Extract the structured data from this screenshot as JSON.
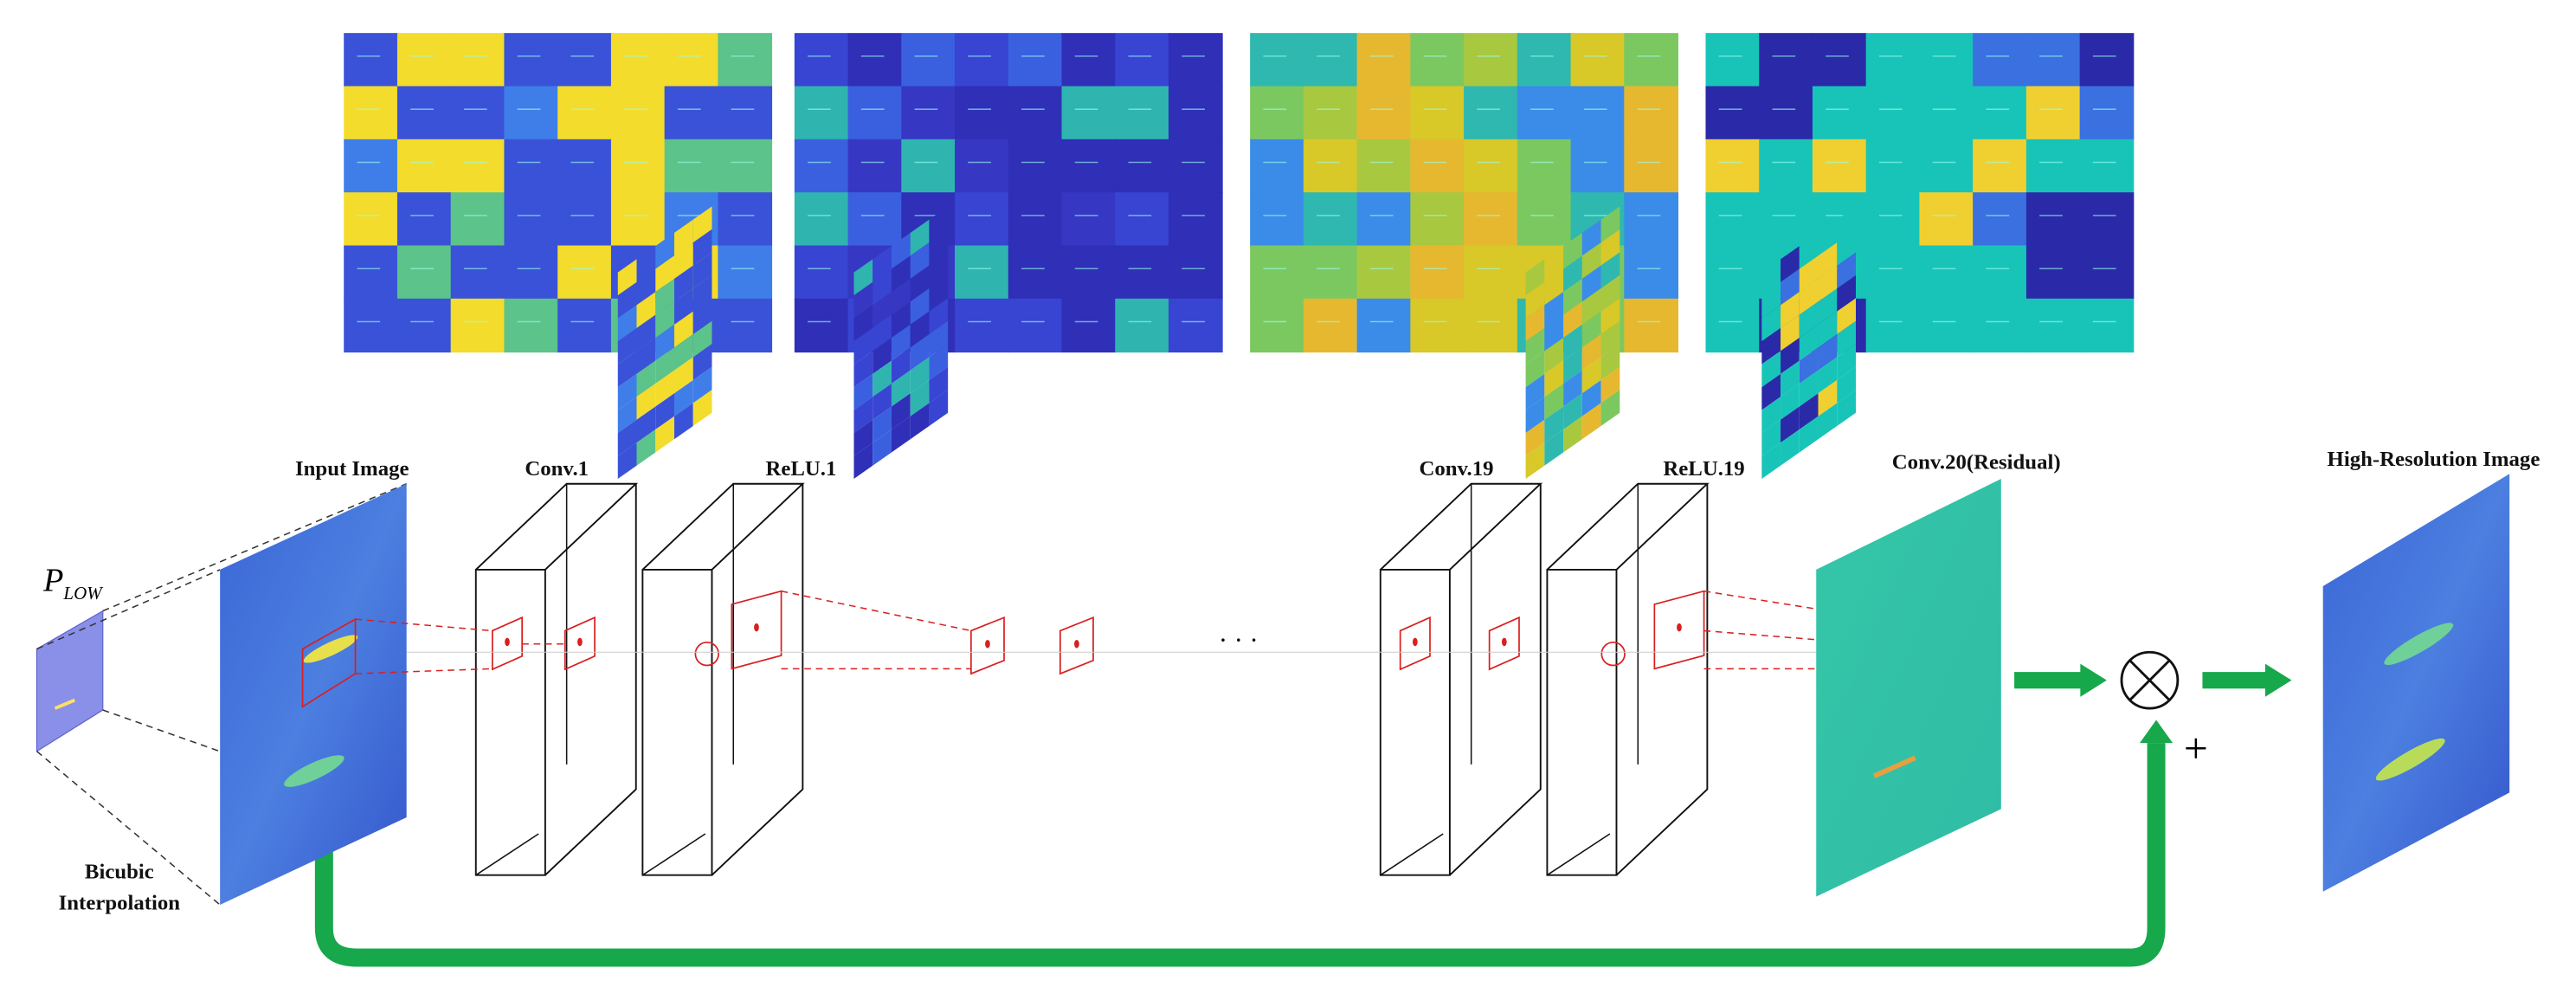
{
  "labels": {
    "p_low": "P",
    "p_low_sub": "LOW",
    "input": "Input Image",
    "bicubic": [
      "Bicubic",
      "Interpolation"
    ],
    "layers": [
      "Conv.1",
      "ReLU.1",
      "Conv.19",
      "ReLU.19",
      "Conv.20(Residual)"
    ],
    "dots": "· · ·",
    "output": "High-Resolution Image",
    "plus": "+"
  }
}
